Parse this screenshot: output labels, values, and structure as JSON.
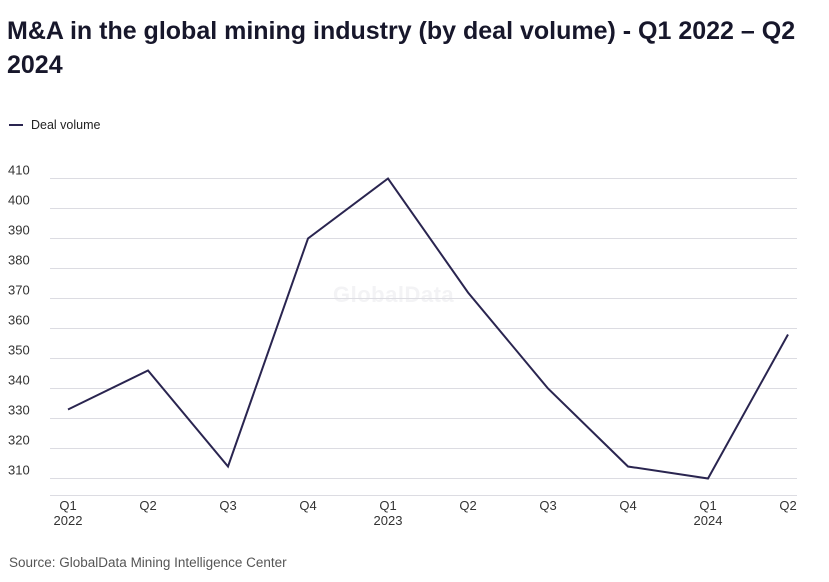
{
  "title": "M&A in the global mining industry (by deal volume) - Q1 2022 – Q2 2024",
  "source": "Source: GlobalData Mining Intelligence Center",
  "watermark": "GlobalData",
  "colors": {
    "line": "#2a2550",
    "grid": "#dcdce2",
    "text": "#17172b"
  },
  "chart_data": {
    "type": "line",
    "title": "M&A in the global mining industry (by deal volume) - Q1 2022 – Q2 2024",
    "categories": [
      "Q1",
      "Q2",
      "Q3",
      "Q4",
      "Q1",
      "Q2",
      "Q3",
      "Q4",
      "Q1",
      "Q2"
    ],
    "year_labels": [
      "2022",
      "",
      "",
      "",
      "2023",
      "",
      "",
      "",
      "2024",
      ""
    ],
    "series": [
      {
        "name": "Deal volume",
        "values": [
          333,
          346,
          314,
          390,
          410,
          372,
          340,
          314,
          310,
          358
        ]
      }
    ],
    "yticks": [
      310,
      320,
      330,
      340,
      350,
      360,
      370,
      380,
      390,
      400,
      410
    ],
    "ylim": [
      305,
      410
    ],
    "grid": true,
    "legend": "top-left"
  }
}
